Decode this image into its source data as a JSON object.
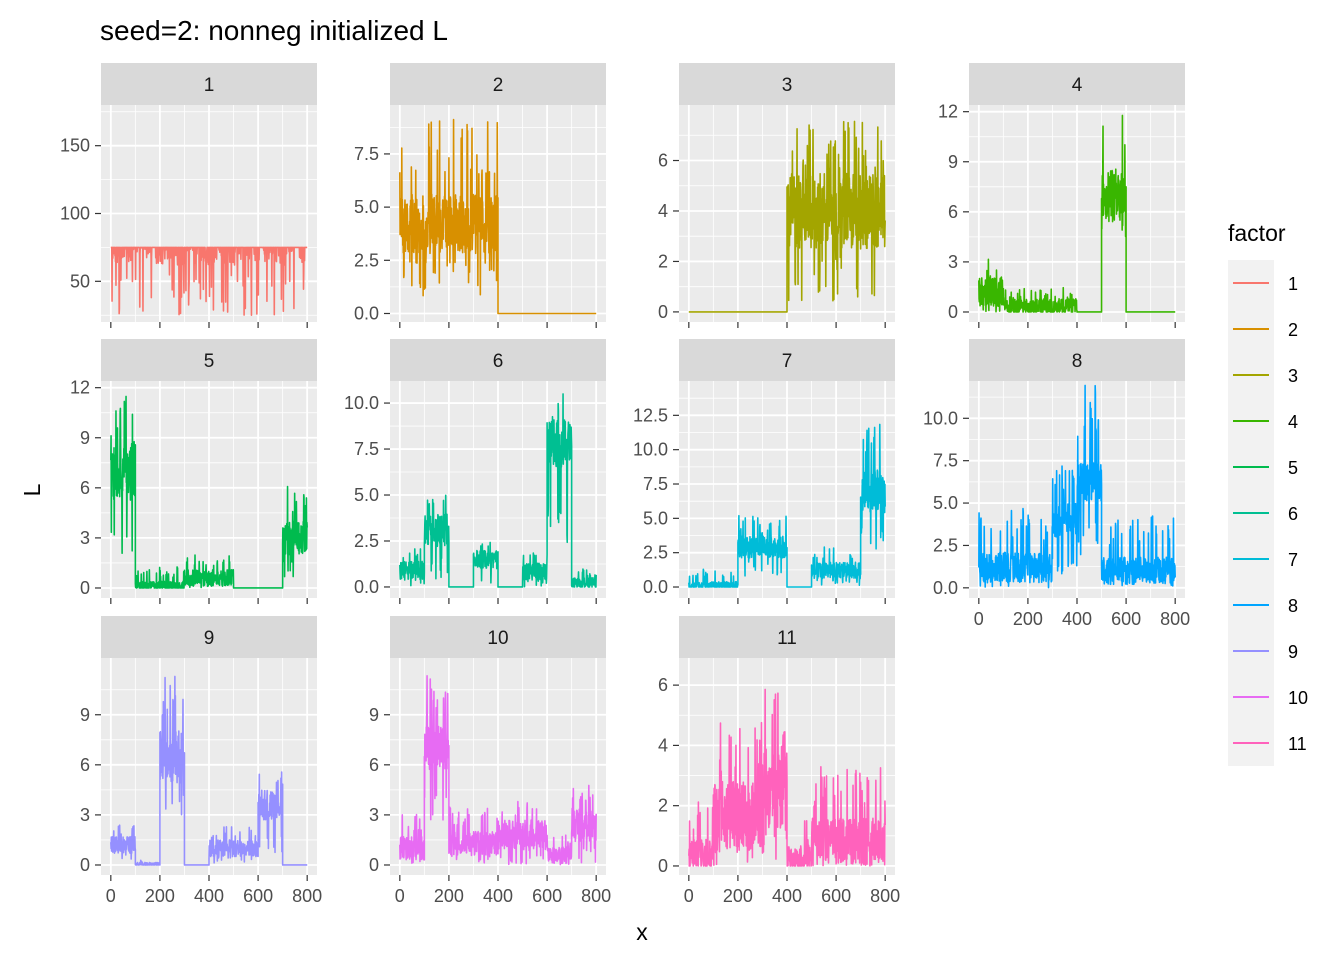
{
  "chart_data": {
    "type": "line",
    "title": "seed=2: nonneg initialized L",
    "xlabel": "x",
    "ylabel": "L",
    "x_ticks": [
      "0",
      "200",
      "400",
      "600",
      "800"
    ],
    "x_tick_values": [
      0,
      200,
      400,
      600,
      800
    ],
    "xlim": [
      -40,
      840
    ],
    "grid": true,
    "legend": {
      "title": "factor",
      "placement": "right",
      "entries": [
        "1",
        "2",
        "3",
        "4",
        "5",
        "6",
        "7",
        "8",
        "9",
        "10",
        "11"
      ]
    },
    "panels": [
      {
        "label": "1",
        "color": "#F8766D",
        "ylim": [
          20,
          180
        ],
        "y_ticks": [
          "50",
          "100",
          "150"
        ],
        "y_tick_values": [
          50,
          100,
          150
        ],
        "segments": [
          {
            "x0": 0,
            "x1": 800,
            "base": 90,
            "amp": 28,
            "spike": 75,
            "floor": 25
          }
        ]
      },
      {
        "label": "2",
        "color": "#D89000",
        "ylim": [
          -0.4,
          9.8
        ],
        "y_ticks": [
          "0.0",
          "2.5",
          "5.0",
          "7.5"
        ],
        "y_tick_values": [
          0,
          2.5,
          5,
          7.5
        ],
        "segments": [
          {
            "x0": 0,
            "x1": 400,
            "base": 4.2,
            "amp": 1.4,
            "spike": 9.2,
            "floor": 0.8
          },
          {
            "x0": 400,
            "x1": 800,
            "base": 0,
            "amp": 0,
            "spike": 0,
            "floor": 0
          }
        ]
      },
      {
        "label": "3",
        "color": "#A3A500",
        "ylim": [
          -0.4,
          8.2
        ],
        "y_ticks": [
          "0",
          "2",
          "4",
          "6"
        ],
        "y_tick_values": [
          0,
          2,
          4,
          6
        ],
        "segments": [
          {
            "x0": 0,
            "x1": 400,
            "base": 0,
            "amp": 0,
            "spike": 0,
            "floor": 0
          },
          {
            "x0": 400,
            "x1": 800,
            "base": 4.0,
            "amp": 1.5,
            "spike": 7.6,
            "floor": 0.4
          }
        ]
      },
      {
        "label": "4",
        "color": "#39B600",
        "ylim": [
          -0.6,
          12.4
        ],
        "y_ticks": [
          "0",
          "3",
          "6",
          "9",
          "12"
        ],
        "y_tick_values": [
          0,
          3,
          6,
          9,
          12
        ],
        "segments": [
          {
            "x0": 0,
            "x1": 100,
            "base": 1.2,
            "amp": 0.9,
            "spike": 3.2,
            "floor": 0
          },
          {
            "x0": 100,
            "x1": 400,
            "base": 0.3,
            "amp": 0.5,
            "spike": 1.5,
            "floor": 0
          },
          {
            "x0": 400,
            "x1": 500,
            "base": 0,
            "amp": 0,
            "spike": 0,
            "floor": 0
          },
          {
            "x0": 500,
            "x1": 600,
            "base": 7.0,
            "amp": 1.6,
            "spike": 11.8,
            "floor": 3.8
          },
          {
            "x0": 600,
            "x1": 800,
            "base": 0,
            "amp": 0,
            "spike": 0,
            "floor": 0
          }
        ]
      },
      {
        "label": "5",
        "color": "#00BB4E",
        "ylim": [
          -0.6,
          12.4
        ],
        "y_ticks": [
          "0",
          "3",
          "6",
          "9",
          "12"
        ],
        "y_tick_values": [
          0,
          3,
          6,
          9,
          12
        ],
        "segments": [
          {
            "x0": 0,
            "x1": 100,
            "base": 7.0,
            "amp": 1.8,
            "spike": 11.6,
            "floor": 1.4
          },
          {
            "x0": 100,
            "x1": 300,
            "base": 0.1,
            "amp": 0.3,
            "spike": 1.3,
            "floor": 0
          },
          {
            "x0": 300,
            "x1": 500,
            "base": 0.6,
            "amp": 0.5,
            "spike": 2.0,
            "floor": 0
          },
          {
            "x0": 500,
            "x1": 700,
            "base": 0,
            "amp": 0,
            "spike": 0,
            "floor": 0
          },
          {
            "x0": 700,
            "x1": 800,
            "base": 3.0,
            "amp": 1.0,
            "spike": 6.2,
            "floor": 0.6
          }
        ]
      },
      {
        "label": "6",
        "color": "#00BF92",
        "ylim": [
          -0.6,
          11.2
        ],
        "y_ticks": [
          "0.0",
          "2.5",
          "5.0",
          "7.5",
          "10.0"
        ],
        "y_tick_values": [
          0,
          2.5,
          5,
          7.5,
          10
        ],
        "segments": [
          {
            "x0": 0,
            "x1": 100,
            "base": 0.9,
            "amp": 0.5,
            "spike": 2.1,
            "floor": 0
          },
          {
            "x0": 100,
            "x1": 200,
            "base": 3.1,
            "amp": 0.9,
            "spike": 5.2,
            "floor": 0.4
          },
          {
            "x0": 200,
            "x1": 300,
            "base": 0,
            "amp": 0,
            "spike": 0,
            "floor": 0
          },
          {
            "x0": 300,
            "x1": 400,
            "base": 1.5,
            "amp": 0.5,
            "spike": 2.6,
            "floor": 0.2
          },
          {
            "x0": 400,
            "x1": 500,
            "base": 0,
            "amp": 0,
            "spike": 0,
            "floor": 0
          },
          {
            "x0": 500,
            "x1": 600,
            "base": 0.8,
            "amp": 0.5,
            "spike": 2.0,
            "floor": 0
          },
          {
            "x0": 600,
            "x1": 700,
            "base": 7.8,
            "amp": 1.3,
            "spike": 10.5,
            "floor": 1.2
          },
          {
            "x0": 700,
            "x1": 800,
            "base": 0.2,
            "amp": 0.3,
            "spike": 1.0,
            "floor": 0
          }
        ]
      },
      {
        "label": "7",
        "color": "#00BCD8",
        "ylim": [
          -0.8,
          15.0
        ],
        "y_ticks": [
          "0.0",
          "2.5",
          "5.0",
          "7.5",
          "10.0",
          "12.5"
        ],
        "y_tick_values": [
          0,
          2.5,
          5,
          7.5,
          10,
          12.5
        ],
        "segments": [
          {
            "x0": 0,
            "x1": 200,
            "base": 0.1,
            "amp": 0.3,
            "spike": 1.3,
            "floor": 0
          },
          {
            "x0": 200,
            "x1": 400,
            "base": 2.9,
            "amp": 0.8,
            "spike": 5.2,
            "floor": 0.8
          },
          {
            "x0": 400,
            "x1": 500,
            "base": 0,
            "amp": 0,
            "spike": 0,
            "floor": 0
          },
          {
            "x0": 500,
            "x1": 700,
            "base": 1.2,
            "amp": 0.6,
            "spike": 3.0,
            "floor": 0
          },
          {
            "x0": 700,
            "x1": 800,
            "base": 7.0,
            "amp": 1.6,
            "spike": 12.0,
            "floor": 2.6
          }
        ]
      },
      {
        "label": "8",
        "color": "#00A5FF",
        "ylim": [
          -0.6,
          12.2
        ],
        "y_ticks": [
          "0.0",
          "2.5",
          "5.0",
          "7.5",
          "10.0"
        ],
        "y_tick_values": [
          0,
          2.5,
          5,
          7.5,
          10
        ],
        "segments": [
          {
            "x0": 0,
            "x1": 300,
            "base": 1.2,
            "amp": 0.9,
            "spike": 4.8,
            "floor": 0
          },
          {
            "x0": 300,
            "x1": 400,
            "base": 4.0,
            "amp": 1.0,
            "spike": 7.6,
            "floor": 0.8
          },
          {
            "x0": 400,
            "x1": 500,
            "base": 6.2,
            "amp": 1.2,
            "spike": 12.0,
            "floor": 1.5
          },
          {
            "x0": 500,
            "x1": 800,
            "base": 1.0,
            "amp": 0.8,
            "spike": 4.3,
            "floor": 0
          }
        ]
      },
      {
        "label": "9",
        "color": "#9590FF",
        "ylim": [
          -0.6,
          12.4
        ],
        "y_ticks": [
          "0",
          "3",
          "6",
          "9"
        ],
        "y_tick_values": [
          0,
          3,
          6,
          9
        ],
        "segments": [
          {
            "x0": 0,
            "x1": 100,
            "base": 1.2,
            "amp": 0.5,
            "spike": 2.4,
            "floor": 0.3
          },
          {
            "x0": 100,
            "x1": 200,
            "base": 0.05,
            "amp": 0.1,
            "spike": 0.3,
            "floor": 0
          },
          {
            "x0": 200,
            "x1": 300,
            "base": 6.5,
            "amp": 1.6,
            "spike": 11.4,
            "floor": 2.0
          },
          {
            "x0": 300,
            "x1": 400,
            "base": 0,
            "amp": 0,
            "spike": 0,
            "floor": 0
          },
          {
            "x0": 400,
            "x1": 600,
            "base": 1.0,
            "amp": 0.5,
            "spike": 2.3,
            "floor": 0
          },
          {
            "x0": 600,
            "x1": 700,
            "base": 3.6,
            "amp": 0.9,
            "spike": 5.7,
            "floor": 0.6
          },
          {
            "x0": 700,
            "x1": 800,
            "base": 0,
            "amp": 0,
            "spike": 0,
            "floor": 0
          }
        ]
      },
      {
        "label": "10",
        "color": "#E76BF3",
        "ylim": [
          -0.6,
          12.4
        ],
        "y_ticks": [
          "0",
          "3",
          "6",
          "9"
        ],
        "y_tick_values": [
          0,
          3,
          6,
          9
        ],
        "segments": [
          {
            "x0": 0,
            "x1": 100,
            "base": 1.0,
            "amp": 0.7,
            "spike": 3.2,
            "floor": 0
          },
          {
            "x0": 100,
            "x1": 200,
            "base": 7.0,
            "amp": 1.3,
            "spike": 11.4,
            "floor": 2.5
          },
          {
            "x0": 200,
            "x1": 400,
            "base": 1.3,
            "amp": 0.7,
            "spike": 3.6,
            "floor": 0
          },
          {
            "x0": 400,
            "x1": 600,
            "base": 1.8,
            "amp": 0.9,
            "spike": 4.0,
            "floor": 0
          },
          {
            "x0": 600,
            "x1": 700,
            "base": 0.6,
            "amp": 0.5,
            "spike": 2.0,
            "floor": 0
          },
          {
            "x0": 700,
            "x1": 800,
            "base": 2.4,
            "amp": 1.0,
            "spike": 4.8,
            "floor": 0
          }
        ]
      },
      {
        "label": "11",
        "color": "#FF62BC",
        "ylim": [
          -0.3,
          6.9
        ],
        "y_ticks": [
          "0",
          "2",
          "4",
          "6"
        ],
        "y_tick_values": [
          0,
          2,
          4,
          6
        ],
        "segments": [
          {
            "x0": 0,
            "x1": 100,
            "base": 0.4,
            "amp": 0.5,
            "spike": 2.2,
            "floor": 0
          },
          {
            "x0": 100,
            "x1": 300,
            "base": 1.6,
            "amp": 1.2,
            "spike": 4.9,
            "floor": 0
          },
          {
            "x0": 300,
            "x1": 400,
            "base": 2.6,
            "amp": 1.4,
            "spike": 6.4,
            "floor": 0
          },
          {
            "x0": 400,
            "x1": 500,
            "base": 0.3,
            "amp": 0.4,
            "spike": 1.5,
            "floor": 0
          },
          {
            "x0": 500,
            "x1": 800,
            "base": 0.8,
            "amp": 0.8,
            "spike": 3.4,
            "floor": 0
          }
        ]
      }
    ]
  }
}
